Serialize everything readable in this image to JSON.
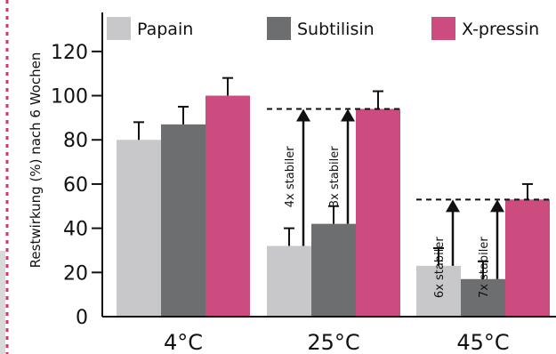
{
  "chart_data": {
    "type": "bar",
    "categories": [
      "4°C",
      "25°C",
      "45°C"
    ],
    "series": [
      {
        "name": "Papain",
        "color": "#c8c8ca",
        "values": [
          80,
          32,
          23
        ],
        "errors": [
          8,
          8,
          8
        ]
      },
      {
        "name": "Subtilisin",
        "color": "#6d6e70",
        "values": [
          87,
          42,
          17
        ],
        "errors": [
          8,
          8,
          8
        ]
      },
      {
        "name": "X-pressin",
        "color": "#cc4c7f",
        "values": [
          100,
          94,
          53
        ],
        "errors": [
          8,
          8,
          7
        ]
      }
    ],
    "ylabel": "Restwirkung (%) nach 6 Wochen",
    "xlabel": "",
    "ylim": [
      0,
      130
    ],
    "yticks": [
      0,
      20,
      40,
      60,
      80,
      100,
      120
    ],
    "legend": "top",
    "grid": false,
    "annotations": [
      {
        "category": "25°C",
        "series": "Papain",
        "text": "4x stabiler",
        "to": 94
      },
      {
        "category": "25°C",
        "series": "Subtilisin",
        "text": "3x stabiler",
        "to": 94
      },
      {
        "category": "45°C",
        "series": "Papain",
        "text": "6x stabiler",
        "to": 53
      },
      {
        "category": "45°C",
        "series": "Subtilisin",
        "text": "7x stabiler",
        "to": 53
      }
    ],
    "reference_lines": [
      {
        "category": "25°C",
        "value": 94
      },
      {
        "category": "45°C",
        "value": 53
      }
    ]
  }
}
